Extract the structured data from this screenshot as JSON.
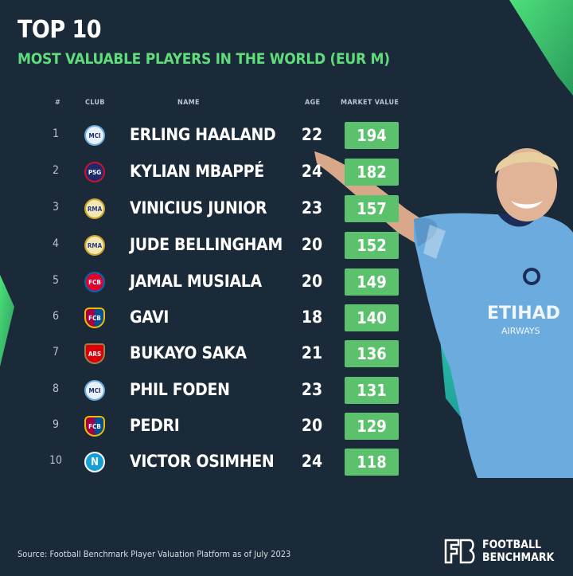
{
  "title": "TOP 10",
  "subtitle": "MOST VALUABLE PLAYERS IN THE WORLD (EUR M)",
  "headers": {
    "rank": "#",
    "club": "CLUB",
    "name": "NAME",
    "age": "AGE",
    "value": "MARKET VALUE"
  },
  "players": [
    {
      "rank": "1",
      "club": "MCI",
      "name": "ERLING HAALAND",
      "age": "22",
      "value": "194"
    },
    {
      "rank": "2",
      "club": "PSG",
      "name": "KYLIAN MBAPPÉ",
      "age": "24",
      "value": "182"
    },
    {
      "rank": "3",
      "club": "RMA",
      "name": "VINICIUS JUNIOR",
      "age": "23",
      "value": "157"
    },
    {
      "rank": "4",
      "club": "RMA",
      "name": "JUDE BELLINGHAM",
      "age": "20",
      "value": "152"
    },
    {
      "rank": "5",
      "club": "FCB",
      "name": "JAMAL MUSIALA",
      "age": "20",
      "value": "149"
    },
    {
      "rank": "6",
      "club": "FCB",
      "name": "GAVI",
      "age": "18",
      "value": "140"
    },
    {
      "rank": "7",
      "club": "ARS",
      "name": "BUKAYO SAKA",
      "age": "21",
      "value": "136"
    },
    {
      "rank": "8",
      "club": "MCI",
      "name": "PHIL FODEN",
      "age": "23",
      "value": "131"
    },
    {
      "rank": "9",
      "club": "FCB",
      "name": "PEDRI",
      "age": "20",
      "value": "129"
    },
    {
      "rank": "10",
      "club": "N",
      "name": "VICTOR OSIMHEN",
      "age": "24",
      "value": "118"
    }
  ],
  "source": "Source: Football Benchmark Player Valuation Platform as of July 2023",
  "brand": {
    "line1": "FOOTBALL",
    "line2": "BENCHMARK",
    "logo": "FB"
  },
  "colors": {
    "background": "#1b2a38",
    "accent": "#5fdd7a",
    "value_box": "#5cc16d",
    "shirt": "#6cabdd"
  }
}
